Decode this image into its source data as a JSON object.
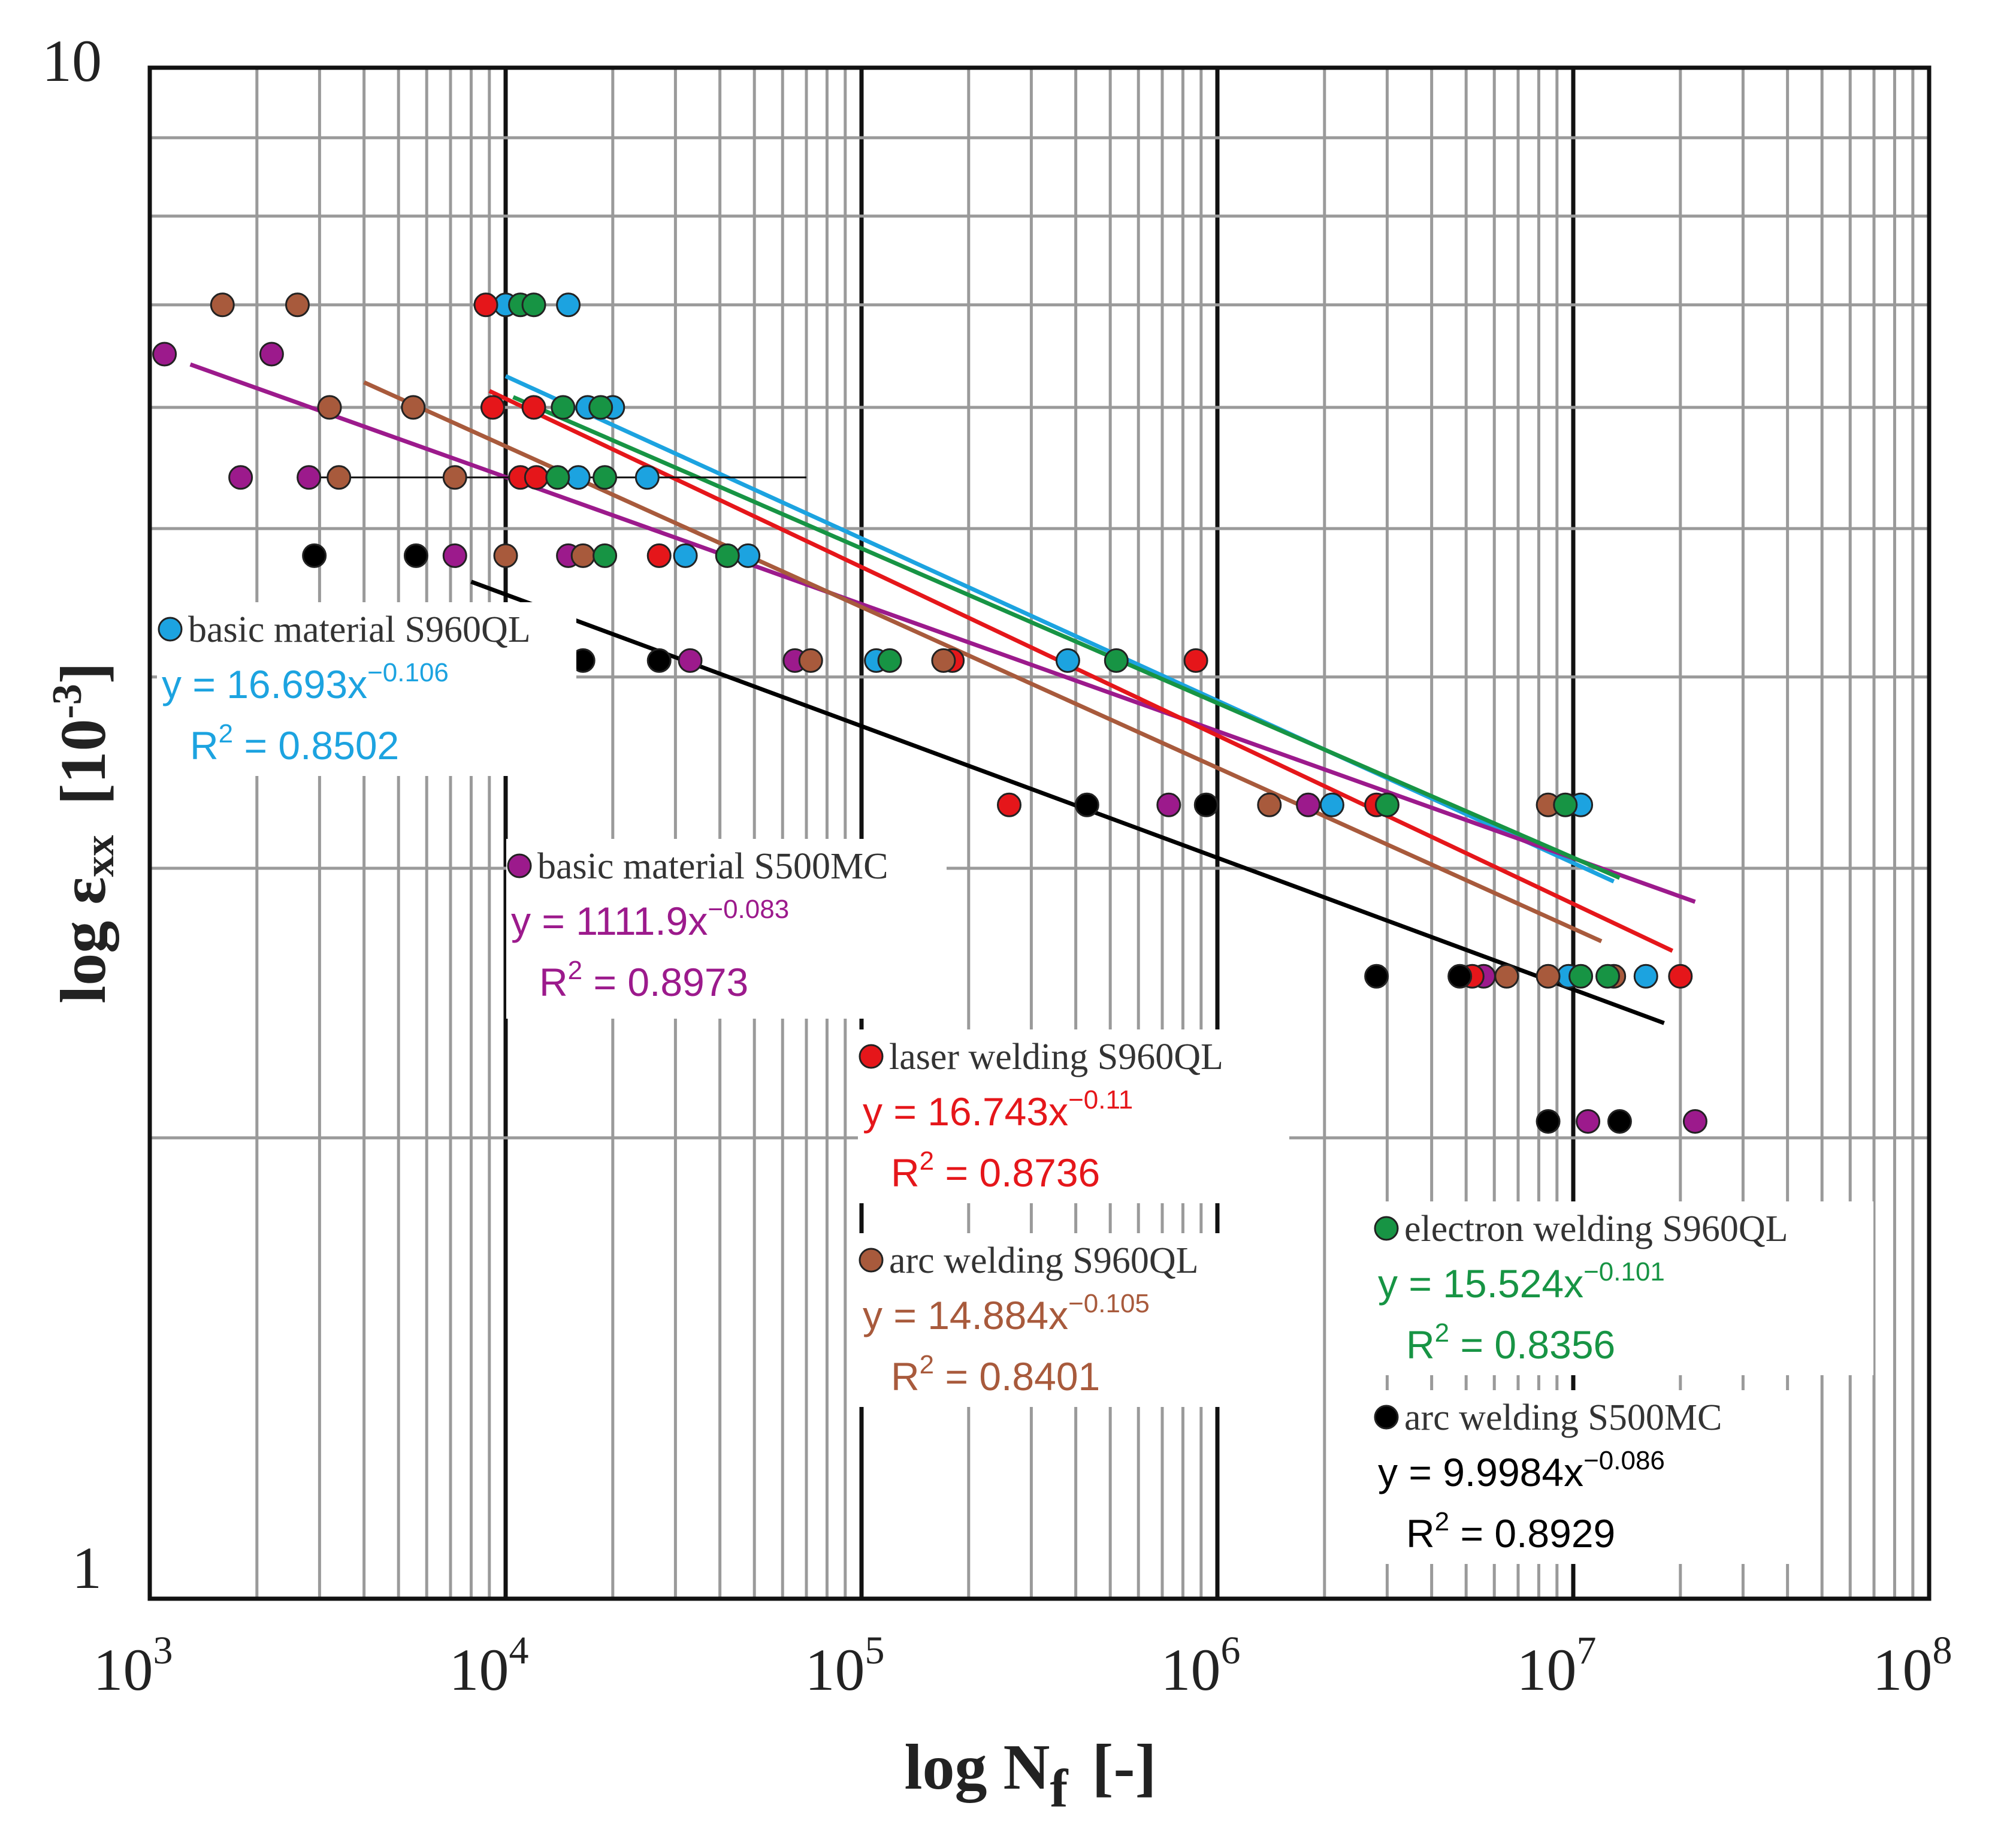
{
  "chart_data": {
    "type": "scatter",
    "xscale": "log",
    "yscale": "log",
    "xlim": [
      1000,
      100000000
    ],
    "ylim": [
      1,
      10
    ],
    "xlabel": {
      "main": "log  N",
      "sub": "f",
      "unit": "[-]"
    },
    "ylabel": {
      "main": "log ε",
      "sub": "xx",
      "unit": "[10",
      "unit_exp": "-3",
      "unit_close": "]"
    },
    "x_ticks": [
      {
        "base": "10",
        "exp": "3"
      },
      {
        "base": "10",
        "exp": "4"
      },
      {
        "base": "10",
        "exp": "5"
      },
      {
        "base": "10",
        "exp": "6"
      },
      {
        "base": "10",
        "exp": "7"
      },
      {
        "base": "10",
        "exp": "8"
      }
    ],
    "y_ticks": [
      "10",
      "1"
    ],
    "grid": true,
    "series": [
      {
        "name": "basic material S960QL",
        "color": "#1ca3e0",
        "equation": "y = 16.693x",
        "exponent": "−0.106",
        "r2_label": "R",
        "r2_value": " = 0.8502",
        "trend_x": [
          10000,
          13000000
        ],
        "points": [
          [
            10000,
            7
          ],
          [
            15000,
            7
          ],
          [
            17000,
            6
          ],
          [
            20000,
            6
          ],
          [
            16000,
            5.4
          ],
          [
            25000,
            5.4
          ],
          [
            32000,
            4.8
          ],
          [
            48000,
            4.8
          ],
          [
            110000,
            4.1
          ],
          [
            380000,
            4.1
          ],
          [
            2100000,
            3.3
          ],
          [
            10500000,
            3.3
          ],
          [
            9700000,
            2.55
          ],
          [
            16000000,
            2.55
          ]
        ]
      },
      {
        "name": "basic material S500MC",
        "color": "#9c1a8c",
        "equation": "y = 1111.9x",
        "exponent": "−0.083",
        "r2_label": "R",
        "r2_value": " = 0.8973",
        "trend_x": [
          1300,
          22000000
        ],
        "points": [
          [
            1100,
            6.5
          ],
          [
            2200,
            6.5
          ],
          [
            1800,
            5.4
          ],
          [
            2800,
            5.4
          ],
          [
            7200,
            4.8
          ],
          [
            15000,
            4.8
          ],
          [
            33000,
            4.1
          ],
          [
            65000,
            4.1
          ],
          [
            730000,
            3.3
          ],
          [
            1800000,
            3.3
          ],
          [
            5600000,
            2.55
          ],
          [
            11000000,
            2.05
          ],
          [
            22000000,
            2.05
          ]
        ]
      },
      {
        "name": "laser welding S960QL",
        "color": "#e5161a",
        "equation": "y = 16.743x",
        "exponent": "−0.11",
        "r2_label": "R",
        "r2_value": " = 0.8736",
        "trend_x": [
          9000,
          19000000
        ],
        "points": [
          [
            8800,
            7
          ],
          [
            9200,
            6
          ],
          [
            12000,
            6
          ],
          [
            11000,
            5.4
          ],
          [
            12200,
            5.4
          ],
          [
            27000,
            4.8
          ],
          [
            180000,
            4.1
          ],
          [
            870000,
            4.1
          ],
          [
            260000,
            3.3
          ],
          [
            2800000,
            3.3
          ],
          [
            5200000,
            2.55
          ],
          [
            20000000,
            2.55
          ]
        ]
      },
      {
        "name": "arc welding S960QL",
        "color": "#a85a3c",
        "equation": "y = 14.884x",
        "exponent": "−0.105",
        "r2_label": "R",
        "r2_value": " = 0.8401",
        "trend_x": [
          4000,
          12000000
        ],
        "points": [
          [
            1600,
            7
          ],
          [
            2600,
            7
          ],
          [
            3200,
            6
          ],
          [
            5500,
            6
          ],
          [
            3400,
            5.4
          ],
          [
            7200,
            5.4
          ],
          [
            10000,
            4.8
          ],
          [
            16500,
            4.8
          ],
          [
            72000,
            4.1
          ],
          [
            170000,
            4.1
          ],
          [
            1400000,
            3.3
          ],
          [
            8500000,
            3.3
          ],
          [
            6500000,
            2.55
          ],
          [
            8500000,
            2.55
          ],
          [
            13000000,
            2.55
          ]
        ]
      },
      {
        "name": "electron welding S960QL",
        "color": "#179444",
        "equation": "y = 15.524x",
        "exponent": "−0.101",
        "r2_label": "R",
        "r2_value": " = 0.8356",
        "trend_x": [
          10500,
          13500000
        ],
        "points": [
          [
            11000,
            7
          ],
          [
            12000,
            7
          ],
          [
            14500,
            6
          ],
          [
            18500,
            6
          ],
          [
            14000,
            5.4
          ],
          [
            19000,
            5.4
          ],
          [
            19000,
            4.8
          ],
          [
            42000,
            4.8
          ],
          [
            120000,
            4.1
          ],
          [
            520000,
            4.1
          ],
          [
            3000000,
            3.3
          ],
          [
            9500000,
            3.3
          ],
          [
            10500000,
            2.55
          ],
          [
            12500000,
            2.55
          ]
        ]
      },
      {
        "name": "arc welding S500MC",
        "color": "#000000",
        "equation": "y = 9.9984x",
        "exponent": "−0.086",
        "r2_label": "R",
        "r2_value": " = 0.8929",
        "trend_x": [
          8000,
          18000000
        ],
        "points": [
          [
            2900,
            4.8
          ],
          [
            5600,
            4.8
          ],
          [
            16500,
            4.1
          ],
          [
            27000,
            4.1
          ],
          [
            430000,
            3.3
          ],
          [
            930000,
            3.3
          ],
          [
            2800000,
            2.55
          ],
          [
            4800000,
            2.55
          ],
          [
            8500000,
            2.05
          ],
          [
            13500000,
            2.05
          ]
        ]
      }
    ],
    "error_bar": {
      "x": [
        3000,
        70000
      ],
      "y": 5.4
    }
  }
}
